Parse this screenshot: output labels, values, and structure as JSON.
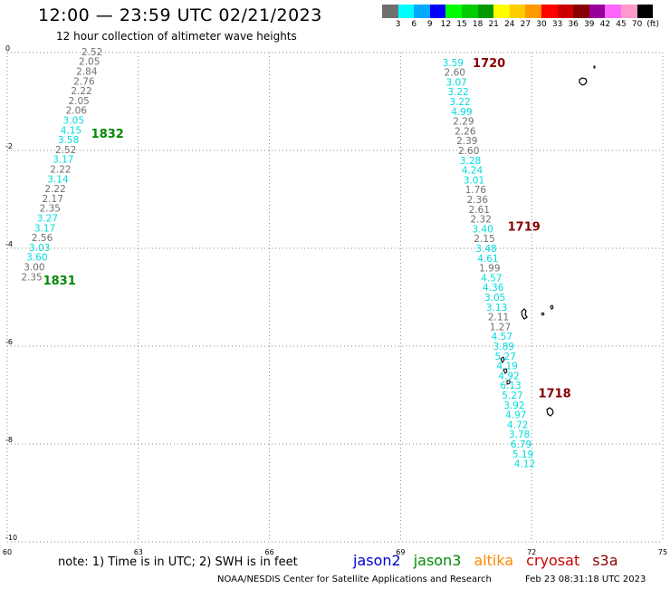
{
  "title": "12:00 — 23:59 UTC 02/21/2023",
  "subtitle": "12 hour collection of altimeter wave heights",
  "legend": {
    "colors": [
      "#707070",
      "#00ffff",
      "#00aaff",
      "#0000ff",
      "#00ff00",
      "#00cc00",
      "#009900",
      "#ffff00",
      "#ffcc00",
      "#ff9900",
      "#ff0000",
      "#cc0000",
      "#880000",
      "#990099",
      "#ff66ff",
      "#ff99cc",
      "#000000"
    ],
    "labels": [
      "3",
      "6",
      "9",
      "12",
      "15",
      "18",
      "21",
      "24",
      "27",
      "30",
      "33",
      "36",
      "39",
      "42",
      "45",
      "70",
      "(ft)"
    ]
  },
  "axes": {
    "x_ticks": [
      "60",
      "63",
      "66",
      "69",
      "72",
      "75"
    ],
    "y_ticks": [
      "0",
      "-2",
      "-4",
      "-6",
      "-8",
      "-10"
    ]
  },
  "note": "note: 1) Time is in UTC; 2) SWH is in feet",
  "satellites": [
    {
      "name": "jason2",
      "color": "#0000cc"
    },
    {
      "name": "jason3",
      "color": "#008800"
    },
    {
      "name": "altika",
      "color": "#ff8800"
    },
    {
      "name": "cryosat",
      "color": "#cc0000"
    },
    {
      "name": "s3a",
      "color": "#880000"
    }
  ],
  "credit": "NOAA/NESDIS Center for Satellite Applications and Research",
  "timestamp": "Feb 23 08:31:18 UTC 2023",
  "tracks": [
    {
      "name": "jason3-track",
      "time_labels": [
        {
          "text": "1832",
          "lon": 61.92,
          "lat": -1.65,
          "color": "#008800"
        },
        {
          "text": "1831",
          "lon": 60.82,
          "lat": -4.65,
          "color": "#008800"
        }
      ],
      "points": [
        {
          "v": "2.52",
          "lon": 61.94,
          "lat": 0.02,
          "c": "#707070"
        },
        {
          "v": "2.05",
          "lon": 61.88,
          "lat": -0.18,
          "c": "#707070"
        },
        {
          "v": "2.84",
          "lon": 61.82,
          "lat": -0.38,
          "c": "#707070"
        },
        {
          "v": "2.76",
          "lon": 61.76,
          "lat": -0.58,
          "c": "#707070"
        },
        {
          "v": "2.22",
          "lon": 61.7,
          "lat": -0.78,
          "c": "#707070"
        },
        {
          "v": "2.05",
          "lon": 61.64,
          "lat": -0.98,
          "c": "#707070"
        },
        {
          "v": "2.06",
          "lon": 61.58,
          "lat": -1.18,
          "c": "#707070"
        },
        {
          "v": "3.05",
          "lon": 61.52,
          "lat": -1.38,
          "c": "#00dddd"
        },
        {
          "v": "4.15",
          "lon": 61.46,
          "lat": -1.58,
          "c": "#00dddd"
        },
        {
          "v": "3.58",
          "lon": 61.4,
          "lat": -1.78,
          "c": "#00dddd"
        },
        {
          "v": "2.52",
          "lon": 61.34,
          "lat": -1.98,
          "c": "#707070"
        },
        {
          "v": "3.17",
          "lon": 61.28,
          "lat": -2.18,
          "c": "#00dddd"
        },
        {
          "v": "2.22",
          "lon": 61.22,
          "lat": -2.38,
          "c": "#707070"
        },
        {
          "v": "3.14",
          "lon": 61.16,
          "lat": -2.58,
          "c": "#00dddd"
        },
        {
          "v": "2.22",
          "lon": 61.1,
          "lat": -2.78,
          "c": "#707070"
        },
        {
          "v": "2.17",
          "lon": 61.04,
          "lat": -2.98,
          "c": "#707070"
        },
        {
          "v": "2.35",
          "lon": 60.98,
          "lat": -3.18,
          "c": "#707070"
        },
        {
          "v": "3.27",
          "lon": 60.92,
          "lat": -3.38,
          "c": "#00dddd"
        },
        {
          "v": "3.17",
          "lon": 60.86,
          "lat": -3.58,
          "c": "#00dddd"
        },
        {
          "v": "2.56",
          "lon": 60.8,
          "lat": -3.78,
          "c": "#707070"
        },
        {
          "v": "3.03",
          "lon": 60.74,
          "lat": -3.98,
          "c": "#00dddd"
        },
        {
          "v": "3.60",
          "lon": 60.68,
          "lat": -4.18,
          "c": "#00dddd"
        },
        {
          "v": "3.00",
          "lon": 60.62,
          "lat": -4.38,
          "c": "#707070"
        },
        {
          "v": "2.35",
          "lon": 60.56,
          "lat": -4.58,
          "c": "#707070"
        }
      ]
    },
    {
      "name": "s3a-track",
      "time_labels": [
        {
          "text": "1720",
          "lon": 70.65,
          "lat": -0.2,
          "color": "#880000"
        },
        {
          "text": "1719",
          "lon": 71.45,
          "lat": -3.55,
          "color": "#880000"
        },
        {
          "text": "1718",
          "lon": 72.15,
          "lat": -6.95,
          "color": "#880000"
        }
      ],
      "points": [
        {
          "v": "3.59",
          "lon": 70.2,
          "lat": -0.2,
          "c": "#00dddd"
        },
        {
          "v": "2.60",
          "lon": 70.24,
          "lat": -0.4,
          "c": "#707070"
        },
        {
          "v": "3.07",
          "lon": 70.28,
          "lat": -0.6,
          "c": "#00dddd"
        },
        {
          "v": "3.22",
          "lon": 70.32,
          "lat": -0.8,
          "c": "#00dddd"
        },
        {
          "v": "3.22",
          "lon": 70.36,
          "lat": -1.0,
          "c": "#00dddd"
        },
        {
          "v": "4.99",
          "lon": 70.4,
          "lat": -1.2,
          "c": "#00dddd"
        },
        {
          "v": "2.29",
          "lon": 70.44,
          "lat": -1.4,
          "c": "#707070"
        },
        {
          "v": "2.26",
          "lon": 70.48,
          "lat": -1.6,
          "c": "#707070"
        },
        {
          "v": "2.39",
          "lon": 70.52,
          "lat": -1.8,
          "c": "#707070"
        },
        {
          "v": "2.60",
          "lon": 70.56,
          "lat": -2.0,
          "c": "#707070"
        },
        {
          "v": "3.28",
          "lon": 70.6,
          "lat": -2.2,
          "c": "#00dddd"
        },
        {
          "v": "4.24",
          "lon": 70.64,
          "lat": -2.4,
          "c": "#00dddd"
        },
        {
          "v": "3.01",
          "lon": 70.68,
          "lat": -2.6,
          "c": "#00dddd"
        },
        {
          "v": "1.76",
          "lon": 70.72,
          "lat": -2.8,
          "c": "#707070"
        },
        {
          "v": "2.36",
          "lon": 70.76,
          "lat": -3.0,
          "c": "#707070"
        },
        {
          "v": "2.61",
          "lon": 70.8,
          "lat": -3.2,
          "c": "#707070"
        },
        {
          "v": "2.32",
          "lon": 70.84,
          "lat": -3.4,
          "c": "#707070"
        },
        {
          "v": "3.40",
          "lon": 70.88,
          "lat": -3.6,
          "c": "#00dddd"
        },
        {
          "v": "2.15",
          "lon": 70.92,
          "lat": -3.8,
          "c": "#707070"
        },
        {
          "v": "3.48",
          "lon": 70.96,
          "lat": -4.0,
          "c": "#00dddd"
        },
        {
          "v": "4.61",
          "lon": 71.0,
          "lat": -4.2,
          "c": "#00dddd"
        },
        {
          "v": "1.99",
          "lon": 71.04,
          "lat": -4.4,
          "c": "#707070"
        },
        {
          "v": "4.57",
          "lon": 71.08,
          "lat": -4.6,
          "c": "#00dddd"
        },
        {
          "v": "4.36",
          "lon": 71.12,
          "lat": -4.8,
          "c": "#00dddd"
        },
        {
          "v": "3.05",
          "lon": 71.16,
          "lat": -5.0,
          "c": "#00dddd"
        },
        {
          "v": "3.13",
          "lon": 71.2,
          "lat": -5.2,
          "c": "#00dddd"
        },
        {
          "v": "2.11",
          "lon": 71.24,
          "lat": -5.4,
          "c": "#707070"
        },
        {
          "v": "1.27",
          "lon": 71.28,
          "lat": -5.6,
          "c": "#707070"
        },
        {
          "v": "4.57",
          "lon": 71.32,
          "lat": -5.8,
          "c": "#00dddd"
        },
        {
          "v": "3.89",
          "lon": 71.36,
          "lat": -6.0,
          "c": "#00dddd"
        },
        {
          "v": "5.27",
          "lon": 71.4,
          "lat": -6.2,
          "c": "#00dddd"
        },
        {
          "v": "4.19",
          "lon": 71.44,
          "lat": -6.4,
          "c": "#00dddd"
        },
        {
          "v": "4.92",
          "lon": 71.48,
          "lat": -6.6,
          "c": "#00dddd"
        },
        {
          "v": "6.13",
          "lon": 71.52,
          "lat": -6.8,
          "c": "#00dddd"
        },
        {
          "v": "5.27",
          "lon": 71.56,
          "lat": -7.0,
          "c": "#00dddd"
        },
        {
          "v": "3.92",
          "lon": 71.6,
          "lat": -7.2,
          "c": "#00dddd"
        },
        {
          "v": "4.97",
          "lon": 71.64,
          "lat": -7.4,
          "c": "#00dddd"
        },
        {
          "v": "4.72",
          "lon": 71.68,
          "lat": -7.6,
          "c": "#00dddd"
        },
        {
          "v": "3.78",
          "lon": 71.72,
          "lat": -7.8,
          "c": "#00dddd"
        },
        {
          "v": "6.79",
          "lon": 71.76,
          "lat": -8.0,
          "c": "#00dddd"
        },
        {
          "v": "5.19",
          "lon": 71.8,
          "lat": -8.2,
          "c": "#00dddd"
        },
        {
          "v": "4.12",
          "lon": 71.84,
          "lat": -8.4,
          "c": "#00dddd"
        }
      ]
    }
  ]
}
